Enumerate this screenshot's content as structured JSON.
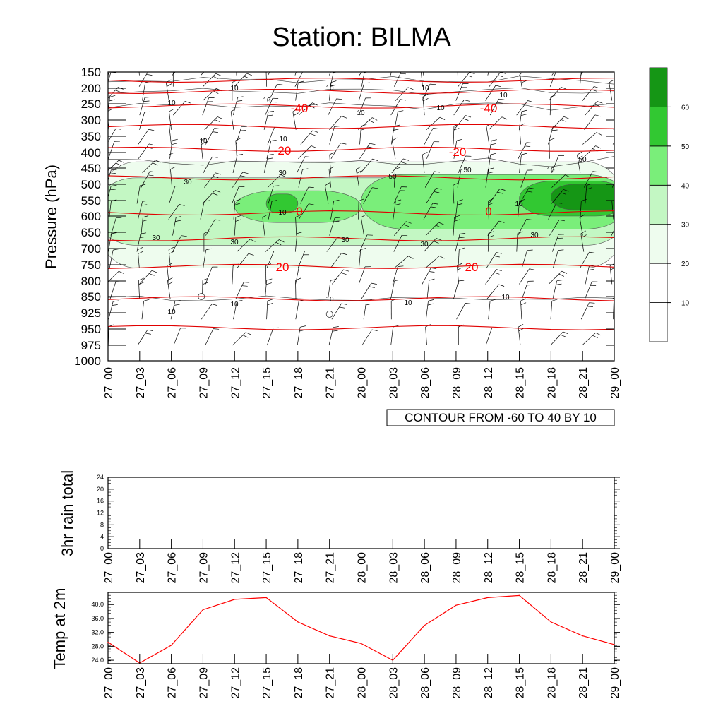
{
  "page": {
    "title": "Station: BILMA"
  },
  "panels": {
    "main": {
      "ylabel": "Pressure (hPa)",
      "pressure_ticks": [
        "150",
        "200",
        "250",
        "300",
        "350",
        "400",
        "450",
        "500",
        "550",
        "600",
        "650",
        "700",
        "750",
        "800",
        "850",
        "925",
        "950",
        "975",
        "1000"
      ],
      "time_ticks": [
        "27_00",
        "27_03",
        "27_06",
        "27_09",
        "27_12",
        "27_15",
        "27_18",
        "27_21",
        "28_00",
        "28_03",
        "28_06",
        "28_09",
        "28_12",
        "28_15",
        "28_18",
        "28_21",
        "29_00"
      ],
      "contour_note": "CONTOUR FROM -60 TO 40 BY 10",
      "colorbar": {
        "levels": [
          "10",
          "20",
          "30",
          "40",
          "50",
          "60"
        ],
        "colors": [
          "#ffffff",
          "#ffffff",
          "#eefcee",
          "#c3f7c3",
          "#7aee7a",
          "#32c832",
          "#159615"
        ]
      },
      "temp_labels": [
        "-40",
        "-40",
        "-20",
        "-20",
        "0",
        "0",
        "20",
        "20"
      ],
      "rh_labels": [
        "10",
        "10",
        "10",
        "10",
        "10",
        "10",
        "10",
        "10",
        "10",
        "10",
        "30",
        "30",
        "30",
        "30",
        "30",
        "30",
        "30",
        "50",
        "50",
        "50",
        "10",
        "10",
        "10",
        "10",
        "10"
      ]
    },
    "rain": {
      "ylabel": "3hr rain total",
      "yticks": [
        "0",
        "4",
        "8",
        "12",
        "16",
        "20",
        "24"
      ]
    },
    "temp": {
      "ylabel": "Temp at 2m",
      "yticks": [
        "24.0",
        "28.0",
        "32.0",
        "36.0",
        "40.0"
      ]
    }
  },
  "chart_data": [
    {
      "type": "heatmap",
      "title": "Station: BILMA",
      "ylabel": "Pressure (hPa)",
      "x": [
        "27_00",
        "27_03",
        "27_06",
        "27_09",
        "27_12",
        "27_15",
        "27_18",
        "27_21",
        "28_00",
        "28_03",
        "28_06",
        "28_09",
        "28_12",
        "28_15",
        "28_18",
        "28_21",
        "29_00"
      ],
      "y_pressure_hPa": [
        150,
        200,
        250,
        300,
        350,
        400,
        450,
        500,
        550,
        600,
        650,
        700,
        750,
        800,
        850,
        925,
        950,
        975,
        1000
      ],
      "shaded_field_levels": [
        10,
        20,
        30,
        40,
        50,
        60
      ],
      "shaded_regions": [
        {
          "level": 20,
          "time_range": [
            "27_00",
            "29_00"
          ],
          "pressure_range": [
            430,
            760
          ]
        },
        {
          "level": 30,
          "time_range": [
            "27_00",
            "29_00"
          ],
          "pressure_range": [
            480,
            690
          ]
        },
        {
          "level": 40,
          "time_range": [
            "27_12",
            "28_00"
          ],
          "pressure_range": [
            520,
            620
          ]
        },
        {
          "level": 40,
          "time_range": [
            "28_00",
            "29_00"
          ],
          "pressure_range": [
            470,
            640
          ]
        },
        {
          "level": 50,
          "time_range": [
            "27_15",
            "27_18"
          ],
          "pressure_range": [
            530,
            590
          ]
        },
        {
          "level": 50,
          "time_range": [
            "28_15",
            "29_00"
          ],
          "pressure_range": [
            490,
            600
          ]
        },
        {
          "level": 60,
          "time_range": [
            "28_18",
            "29_00"
          ],
          "pressure_range": [
            500,
            580
          ]
        }
      ],
      "temperature_contours": {
        "note": "CONTOUR FROM -60 TO 40 BY 10",
        "levels": [
          {
            "value": -60,
            "pressure": 175
          },
          {
            "value": -50,
            "pressure": 210
          },
          {
            "value": -40,
            "pressure": 257
          },
          {
            "value": -30,
            "pressure": 320
          },
          {
            "value": -20,
            "pressure": 390
          },
          {
            "value": -10,
            "pressure": 480
          },
          {
            "value": 0,
            "pressure": 590
          },
          {
            "value": 10,
            "pressure": 670
          },
          {
            "value": 20,
            "pressure": 755
          },
          {
            "value": 30,
            "pressure": 860
          },
          {
            "value": 40,
            "pressure": 948
          }
        ]
      }
    },
    {
      "type": "line",
      "ylabel": "3hr rain total",
      "x": [
        "27_00",
        "27_03",
        "27_06",
        "27_09",
        "27_12",
        "27_15",
        "27_18",
        "27_21",
        "28_00",
        "28_03",
        "28_06",
        "28_09",
        "28_12",
        "28_15",
        "28_18",
        "28_21",
        "29_00"
      ],
      "ylim": [
        0,
        24
      ],
      "series": [
        {
          "values": [
            0,
            0,
            0,
            0,
            0,
            0,
            0,
            0,
            0,
            0,
            0,
            0,
            0,
            0,
            0,
            0,
            0
          ]
        }
      ]
    },
    {
      "type": "line",
      "ylabel": "Temp at 2m",
      "x": [
        "27_00",
        "27_03",
        "27_06",
        "27_09",
        "27_12",
        "27_15",
        "27_18",
        "27_21",
        "28_00",
        "28_03",
        "28_06",
        "28_09",
        "28_12",
        "28_15",
        "28_18",
        "28_21",
        "29_00"
      ],
      "ylim": [
        23.0,
        43.5
      ],
      "series": [
        {
          "values": [
            29.2,
            23.2,
            28.3,
            38.5,
            41.5,
            42.0,
            35.0,
            31.0,
            28.8,
            24.0,
            34.0,
            39.8,
            42.0,
            42.6,
            35.0,
            31.0,
            28.5
          ]
        }
      ],
      "color": "#ff0000"
    }
  ]
}
